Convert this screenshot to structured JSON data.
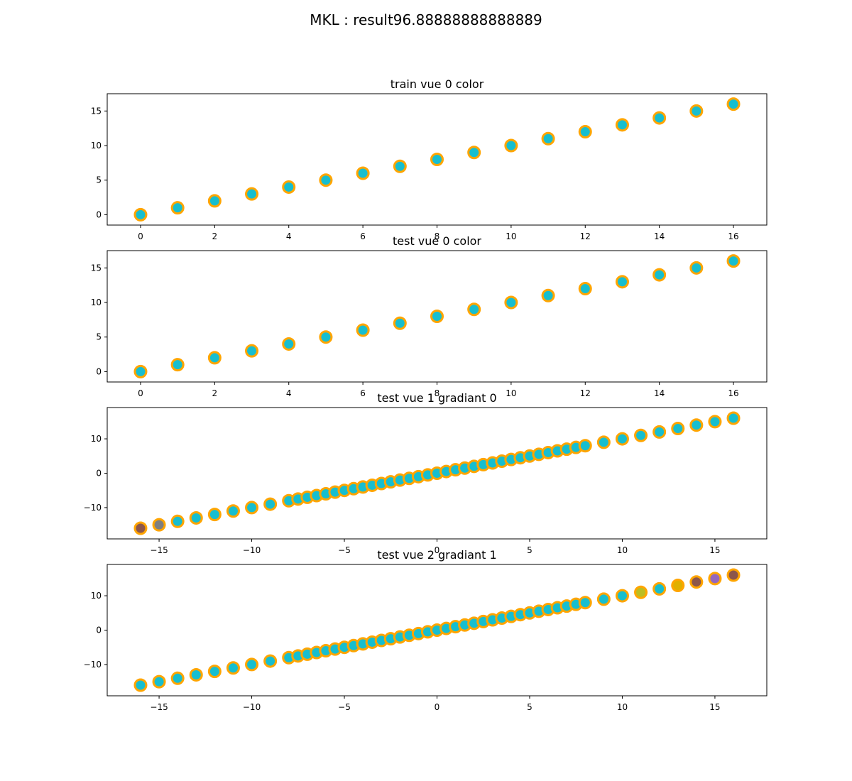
{
  "suptitle": "MKL : result96.88888888888889",
  "colors": {
    "marker_face": "#17becf",
    "marker_edge": "#ffa500",
    "brown": "#8c564b",
    "gray": "#7f7f7f",
    "olive": "#bcbd22",
    "gold": "#e0b000",
    "purple": "#9467bd"
  },
  "chart_data": [
    {
      "type": "scatter",
      "title": "train vue 0 color",
      "xlim": [
        -0.9,
        16.9
      ],
      "ylim": [
        -1.5,
        17.5
      ],
      "xticks": [
        0,
        2,
        4,
        6,
        8,
        10,
        12,
        14,
        16
      ],
      "yticks": [
        0,
        5,
        10,
        15
      ],
      "x": [
        0,
        1,
        2,
        3,
        4,
        5,
        6,
        7,
        8,
        9,
        10,
        11,
        12,
        13,
        14,
        15,
        16
      ],
      "y": [
        0,
        1,
        2,
        3,
        4,
        5,
        6,
        7,
        8,
        9,
        10,
        11,
        12,
        13,
        14,
        15,
        16
      ],
      "point_colors": {}
    },
    {
      "type": "scatter",
      "title": "test vue 0 color",
      "xlim": [
        -0.9,
        16.9
      ],
      "ylim": [
        -1.5,
        17.5
      ],
      "xticks": [
        0,
        2,
        4,
        6,
        8,
        10,
        12,
        14,
        16
      ],
      "yticks": [
        0,
        5,
        10,
        15
      ],
      "x": [
        0,
        1,
        2,
        3,
        4,
        5,
        6,
        7,
        8,
        9,
        10,
        11,
        12,
        13,
        14,
        15,
        16
      ],
      "y": [
        0,
        1,
        2,
        3,
        4,
        5,
        6,
        7,
        8,
        9,
        10,
        11,
        12,
        13,
        14,
        15,
        16
      ],
      "point_colors": {}
    },
    {
      "type": "scatter",
      "title": "test vue 1 gradiant 0",
      "xlim": [
        -17.8,
        17.8
      ],
      "ylim": [
        -19.1,
        19.1
      ],
      "xticks": [
        -15,
        -10,
        -5,
        0,
        5,
        10,
        15
      ],
      "yticks": [
        -10,
        0,
        10
      ],
      "x": [
        -16,
        -15,
        -14,
        -13,
        -12,
        -11,
        -10,
        -9,
        -8,
        -7.5,
        -7,
        -6.5,
        -6,
        -5.5,
        -5,
        -4.5,
        -4,
        -3.5,
        -3,
        -2.5,
        -2,
        -1.5,
        -1,
        -0.5,
        0,
        0.5,
        1,
        1.5,
        2,
        2.5,
        3,
        3.5,
        4,
        4.5,
        5,
        5.5,
        6,
        6.5,
        7,
        7.5,
        8,
        9,
        10,
        11,
        12,
        13,
        14,
        15,
        16
      ],
      "y": [
        -16,
        -15,
        -14,
        -13,
        -12,
        -11,
        -10,
        -9,
        -8,
        -7.5,
        -7,
        -6.5,
        -6,
        -5.5,
        -5,
        -4.5,
        -4,
        -3.5,
        -3,
        -2.5,
        -2,
        -1.5,
        -1,
        -0.5,
        0,
        0.5,
        1,
        1.5,
        2,
        2.5,
        3,
        3.5,
        4,
        4.5,
        5,
        5.5,
        6,
        6.5,
        7,
        7.5,
        8,
        9,
        10,
        11,
        12,
        13,
        14,
        15,
        16
      ],
      "point_colors": {
        "-16": "brown",
        "-15": "gray"
      }
    },
    {
      "type": "scatter",
      "title": "test vue 2 gradiant 1",
      "xlim": [
        -17.8,
        17.8
      ],
      "ylim": [
        -19.1,
        19.1
      ],
      "xticks": [
        -15,
        -10,
        -5,
        0,
        5,
        10,
        15
      ],
      "yticks": [
        -10,
        0,
        10
      ],
      "x": [
        -16,
        -15,
        -14,
        -13,
        -12,
        -11,
        -10,
        -9,
        -8,
        -7.5,
        -7,
        -6.5,
        -6,
        -5.5,
        -5,
        -4.5,
        -4,
        -3.5,
        -3,
        -2.5,
        -2,
        -1.5,
        -1,
        -0.5,
        0,
        0.5,
        1,
        1.5,
        2,
        2.5,
        3,
        3.5,
        4,
        4.5,
        5,
        5.5,
        6,
        6.5,
        7,
        7.5,
        8,
        9,
        10,
        11,
        12,
        13,
        14,
        15,
        16
      ],
      "y": [
        -16,
        -15,
        -14,
        -13,
        -12,
        -11,
        -10,
        -9,
        -8,
        -7.5,
        -7,
        -6.5,
        -6,
        -5.5,
        -5,
        -4.5,
        -4,
        -3.5,
        -3,
        -2.5,
        -2,
        -1.5,
        -1,
        -0.5,
        0,
        0.5,
        1,
        1.5,
        2,
        2.5,
        3,
        3.5,
        4,
        4.5,
        5,
        5.5,
        6,
        6.5,
        7,
        7.5,
        8,
        9,
        10,
        11,
        12,
        13,
        14,
        15,
        16
      ],
      "point_colors": {
        "11": "olive",
        "13": "gold",
        "14": "brown",
        "15": "purple",
        "16": "brown"
      }
    }
  ]
}
